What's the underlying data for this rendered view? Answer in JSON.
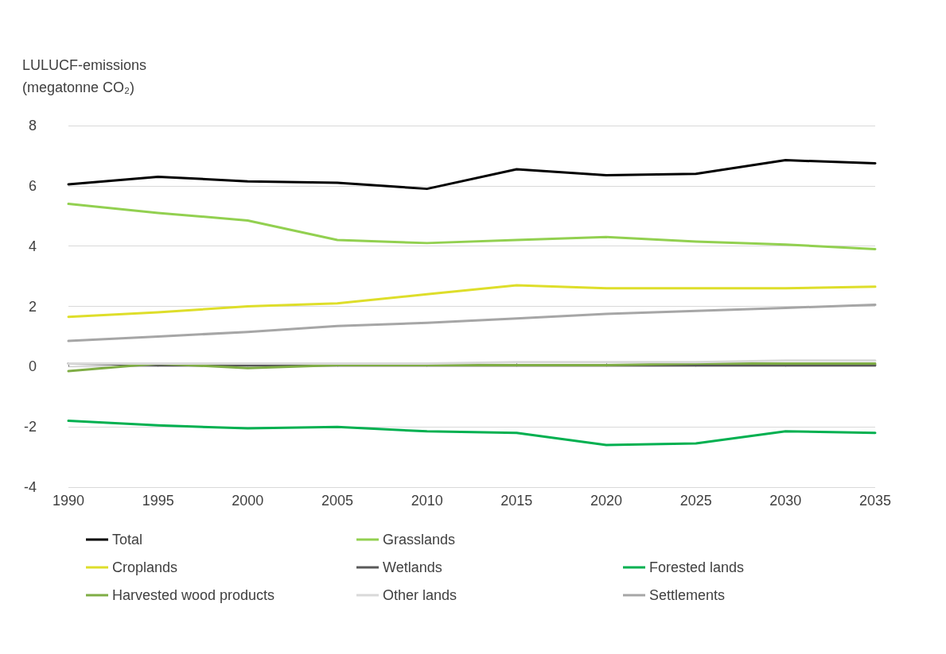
{
  "chart_data": {
    "type": "line",
    "ylabel": "LULUCF-emissions\n(megatonne CO₂)",
    "x": [
      1990,
      1995,
      2000,
      2005,
      2010,
      2015,
      2020,
      2025,
      2030,
      2035
    ],
    "series": [
      {
        "name": "Total",
        "color": "#000000",
        "values": [
          6.05,
          6.3,
          6.15,
          6.1,
          5.9,
          6.55,
          6.35,
          6.4,
          6.85,
          6.75
        ]
      },
      {
        "name": "Grasslands",
        "color": "#92d050",
        "values": [
          5.4,
          5.1,
          4.85,
          4.2,
          4.1,
          4.2,
          4.3,
          4.15,
          4.05,
          3.9
        ]
      },
      {
        "name": "Forested lands",
        "color": "#00b050",
        "values": [
          -1.8,
          -1.95,
          -2.05,
          -2.0,
          -2.15,
          -2.2,
          -2.6,
          -2.55,
          -2.15,
          -2.2
        ]
      },
      {
        "name": "Croplands",
        "color": "#dede2a",
        "values": [
          1.65,
          1.8,
          2.0,
          2.1,
          2.4,
          2.7,
          2.6,
          2.6,
          2.6,
          2.65
        ]
      },
      {
        "name": "Wetlands",
        "color": "#595959",
        "values": [
          0.1,
          0.05,
          0.05,
          0.05,
          0.05,
          0.05,
          0.05,
          0.05,
          0.05,
          0.05
        ]
      },
      {
        "name": "Settlements",
        "color": "#a6a6a6",
        "values": [
          0.85,
          1.0,
          1.15,
          1.35,
          1.45,
          1.6,
          1.75,
          1.85,
          1.95,
          2.05
        ]
      },
      {
        "name": "Harvested wood products",
        "color": "#7fad45",
        "values": [
          -0.15,
          0.1,
          -0.05,
          0.05,
          0.05,
          0.05,
          0.05,
          0.1,
          0.1,
          0.1
        ]
      },
      {
        "name": "Other lands",
        "color": "#d9d9d9",
        "values": [
          0.1,
          0.1,
          0.1,
          0.1,
          0.1,
          0.15,
          0.15,
          0.15,
          0.2,
          0.2
        ]
      }
    ],
    "xlim": [
      1990,
      2035
    ],
    "xticks": [
      1990,
      1995,
      2000,
      2005,
      2010,
      2015,
      2020,
      2025,
      2030,
      2035
    ],
    "ylim": [
      -4,
      8
    ],
    "yticks": [
      -4,
      -2,
      0,
      2,
      4,
      6,
      8
    ],
    "grid": "y",
    "legend": "bottom",
    "marker": "none",
    "line_style": "solid"
  }
}
